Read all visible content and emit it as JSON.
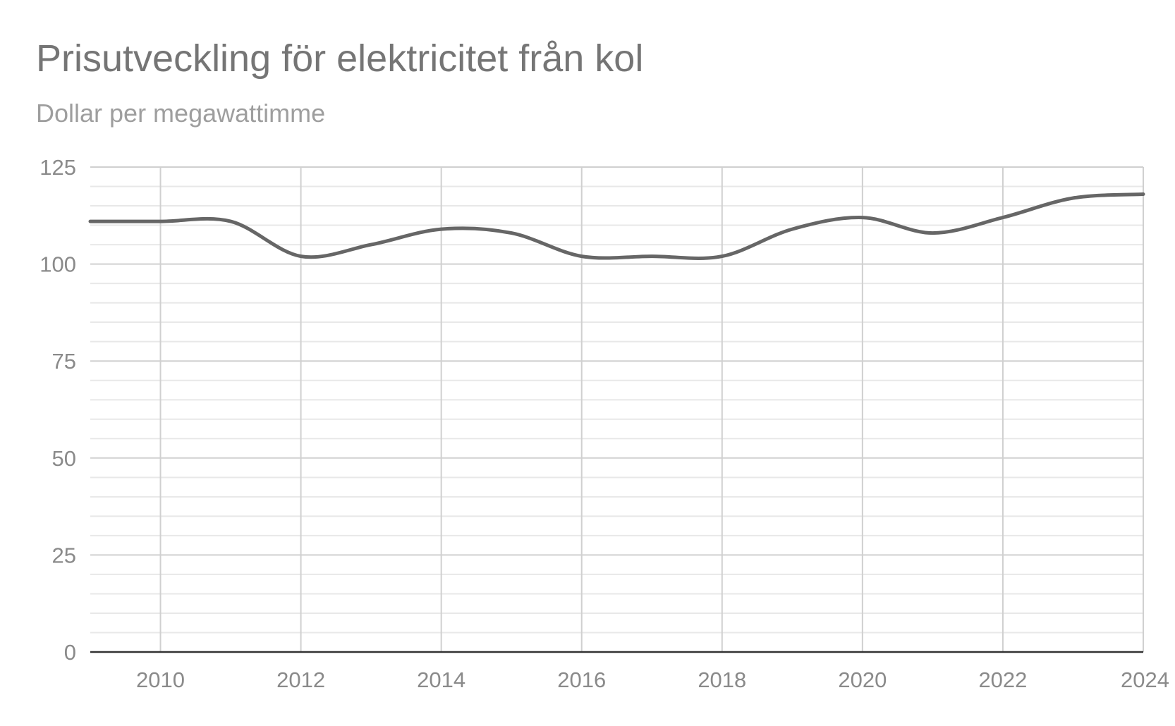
{
  "chart_data": {
    "type": "line",
    "title": "Prisutveckling för elektricitet från kol",
    "subtitle": "Dollar per megawattimme",
    "xlabel": "",
    "ylabel": "",
    "xlim": [
      2009,
      2024
    ],
    "ylim": [
      0,
      125
    ],
    "x_ticks": [
      "2010",
      "2012",
      "2014",
      "2016",
      "2018",
      "2020",
      "2022",
      "2024"
    ],
    "y_ticks": [
      "0",
      "25",
      "50",
      "75",
      "100",
      "125"
    ],
    "grid": true,
    "legend": "none",
    "x": [
      2009,
      2010,
      2011,
      2012,
      2013,
      2014,
      2015,
      2016,
      2017,
      2018,
      2019,
      2020,
      2021,
      2022,
      2023,
      2024
    ],
    "series": [
      {
        "values": [
          111,
          111,
          111,
          102,
          105,
          109,
          108,
          102,
          102,
          102,
          109,
          112,
          108,
          112,
          117,
          118
        ],
        "color": "#666666"
      }
    ],
    "colors": {
      "major_grid": "#d0d0d0",
      "minor_grid": "#e8e8e8",
      "baseline": "#333333",
      "line": "#666666"
    }
  }
}
